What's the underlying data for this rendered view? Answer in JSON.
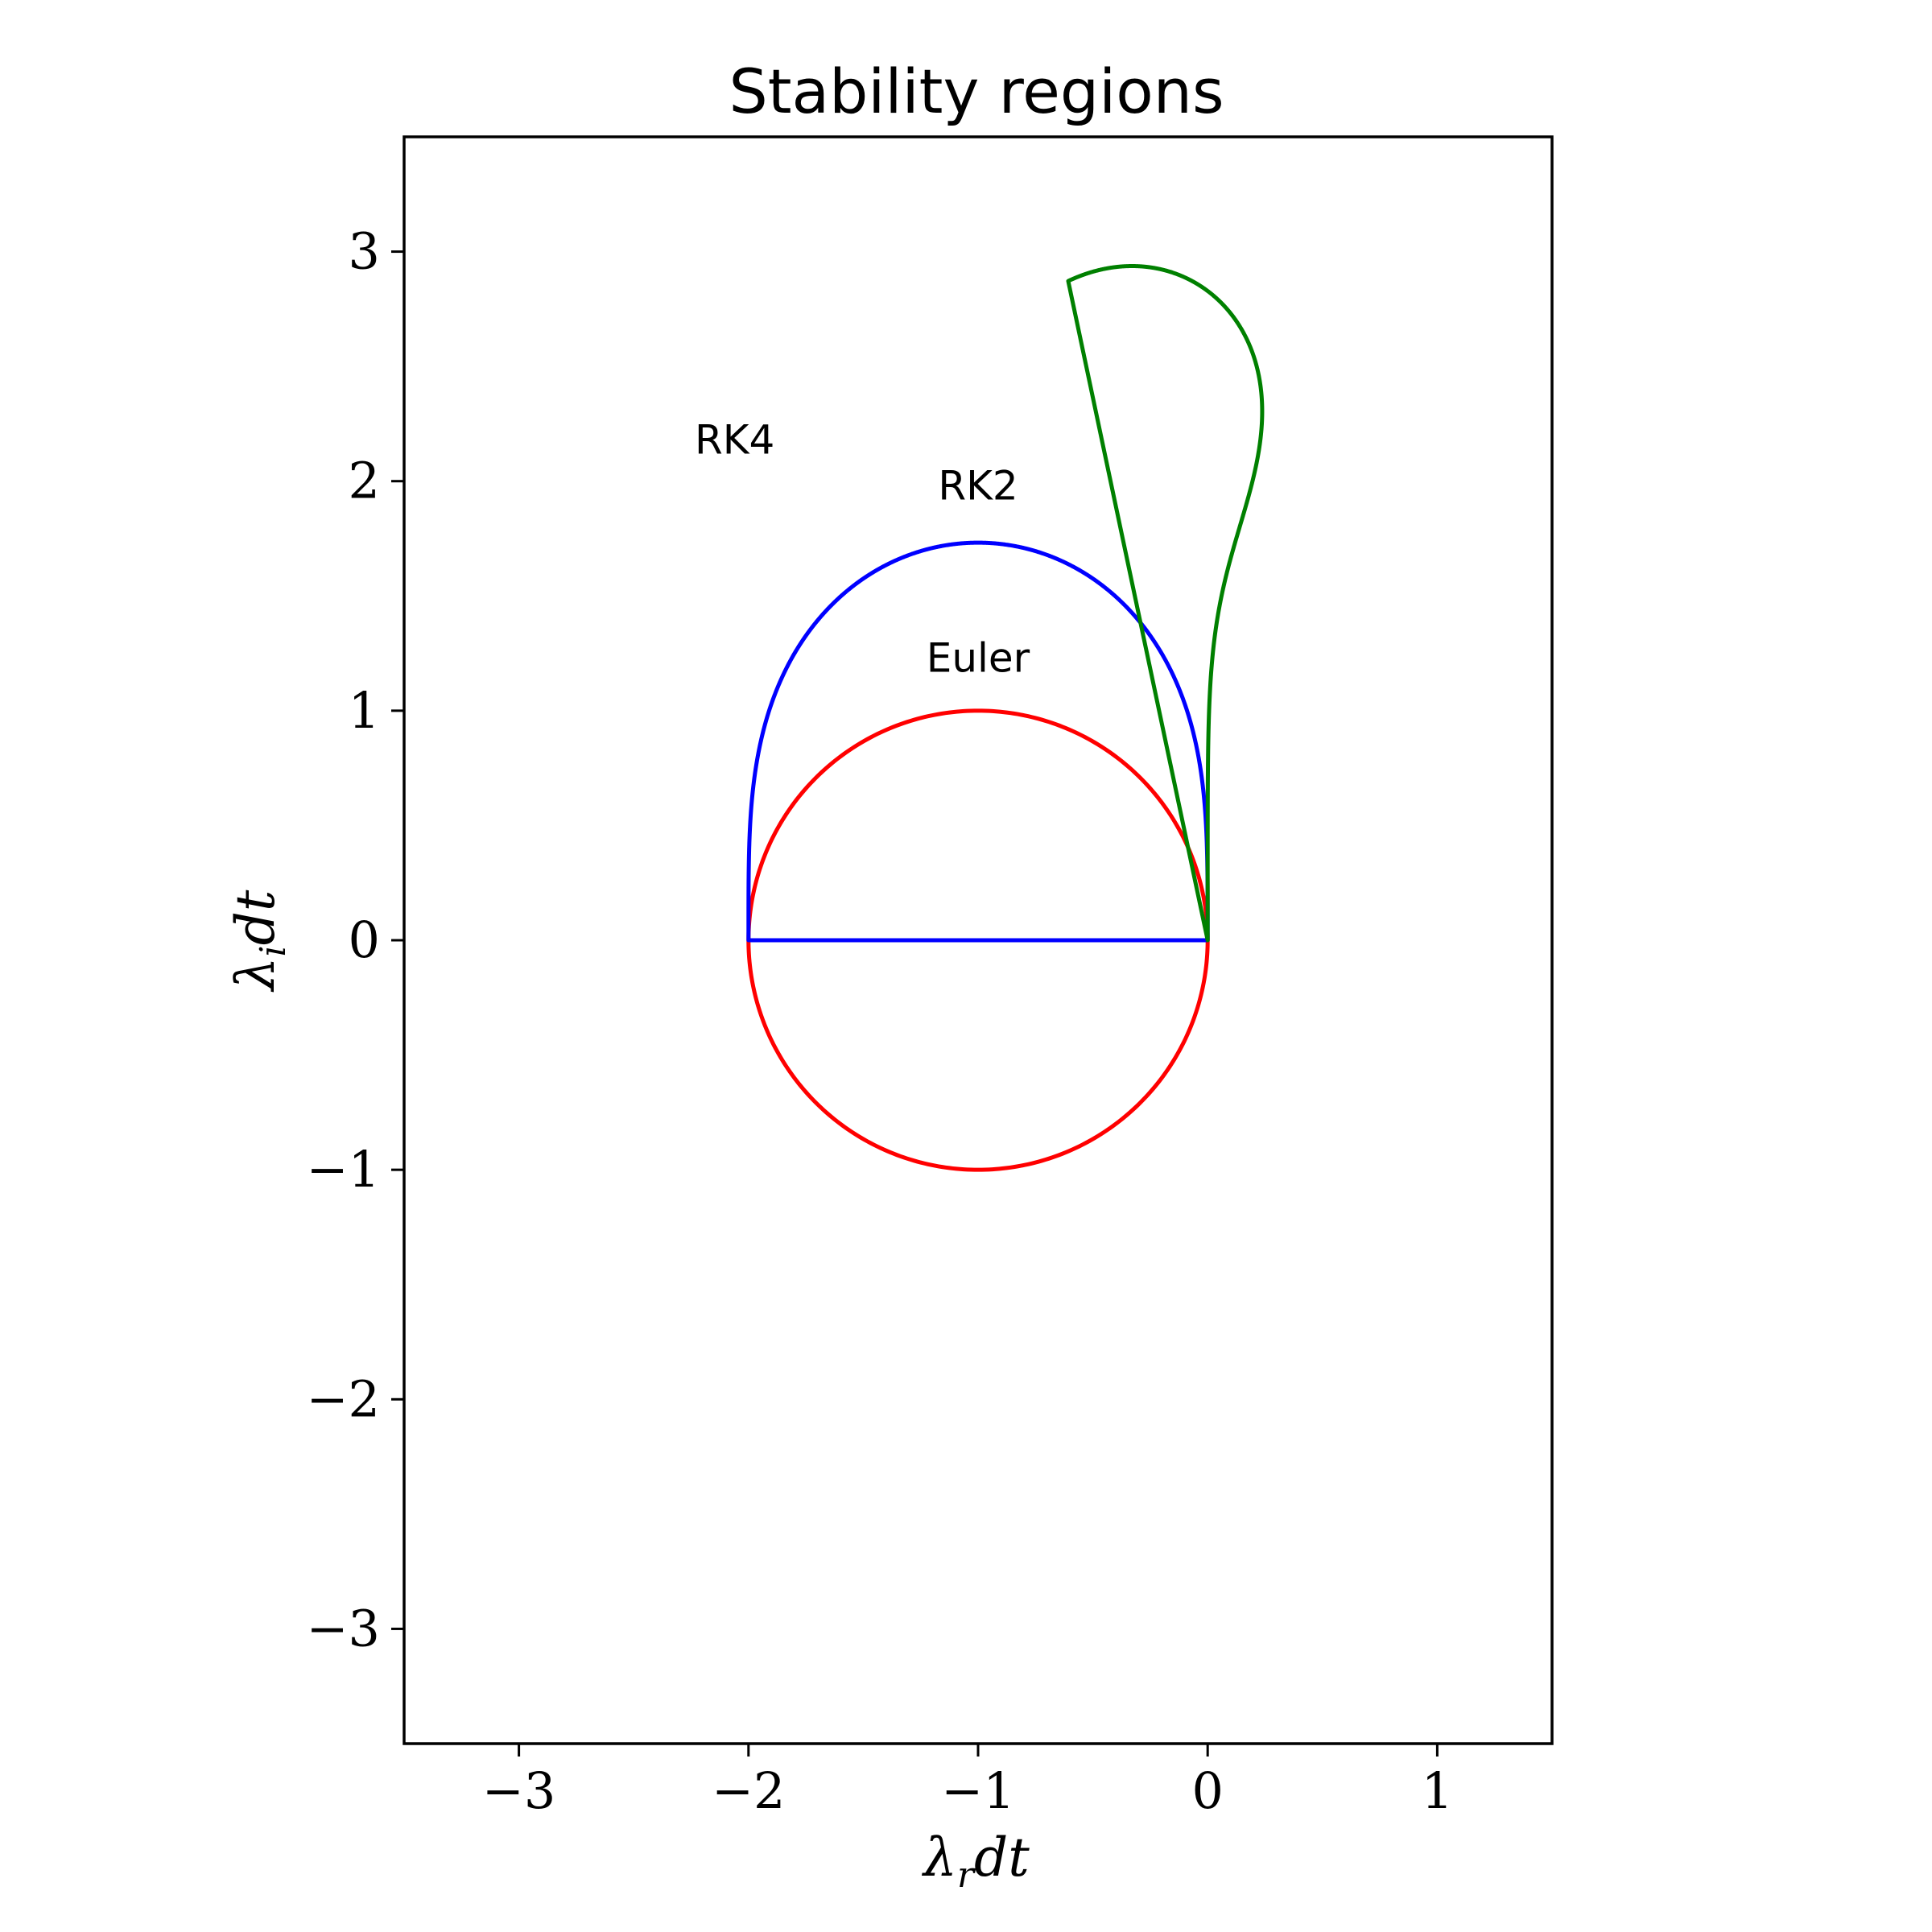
{
  "chart_data": {
    "type": "line",
    "title": "Stability regions",
    "xlabel": {
      "base": "λ",
      "sub": "r",
      "rest": "dt"
    },
    "ylabel": {
      "base": "λ",
      "sub": "i",
      "rest": "dt"
    },
    "xlim": [
      -3.5,
      1.5
    ],
    "ylim": [
      -3.5,
      3.5
    ],
    "xticks": [
      -3,
      -2,
      -1,
      0,
      1
    ],
    "yticks": [
      -3,
      -2,
      -1,
      0,
      1,
      2,
      3
    ],
    "xtick_labels": [
      "−3",
      "−2",
      "−1",
      "0",
      "1"
    ],
    "ytick_labels": [
      "−3",
      "−2",
      "−1",
      "0",
      "1",
      "2",
      "3"
    ],
    "grid": false,
    "legend": "none",
    "series": [
      {
        "name": "Euler",
        "color": "#ff0000",
        "stability_polynomial_order": 1,
        "label_at": [
          -1.0,
          1.17
        ]
      },
      {
        "name": "RK2",
        "color": "#0000ff",
        "stability_polynomial_order": 2,
        "label_at": [
          -1.0,
          1.92
        ]
      },
      {
        "name": "RK4",
        "color": "#008000",
        "stability_polynomial_order": 4,
        "label_at": [
          -2.06,
          2.12
        ]
      }
    ]
  }
}
